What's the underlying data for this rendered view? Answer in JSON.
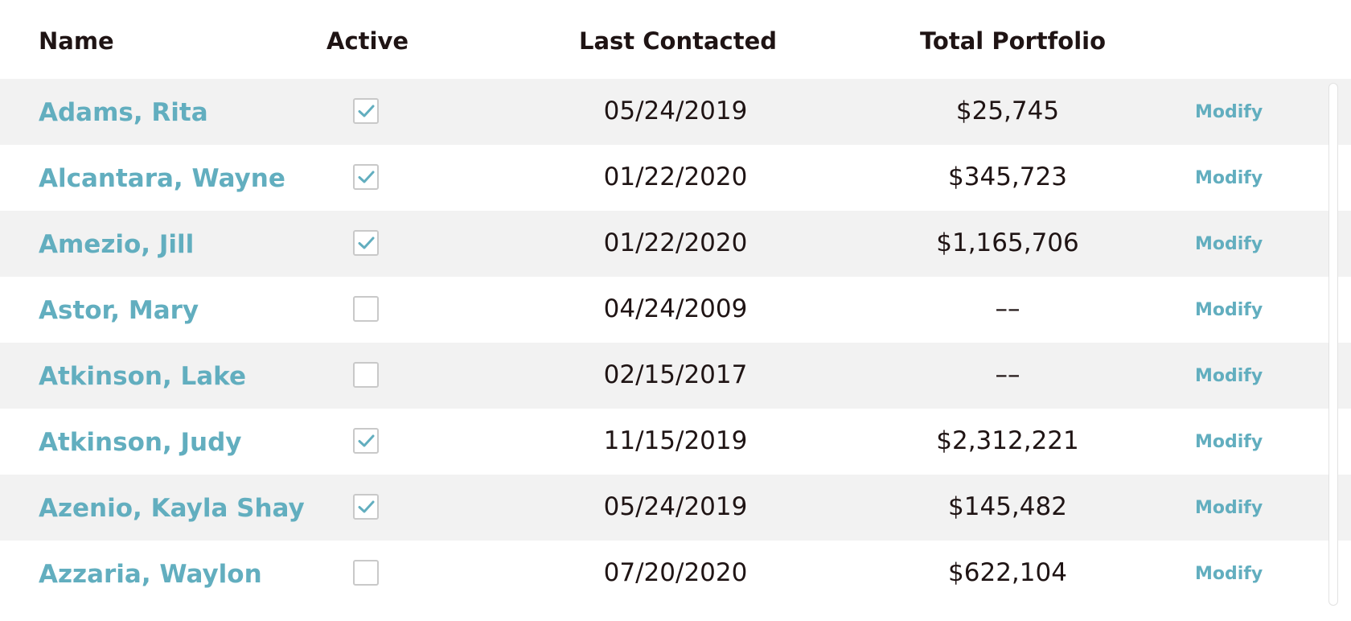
{
  "table": {
    "headers": {
      "name": "Name",
      "active": "Active",
      "last_contacted": "Last Contacted",
      "total_portfolio": "Total Portfolio"
    },
    "rows": [
      {
        "name": "Adams, Rita",
        "active": true,
        "last_contacted": "05/24/2019",
        "total_portfolio": "$25,745",
        "action": "Modify"
      },
      {
        "name": "Alcantara, Wayne",
        "active": true,
        "last_contacted": "01/22/2020",
        "total_portfolio": "$345,723",
        "action": "Modify"
      },
      {
        "name": "Amezio, Jill",
        "active": true,
        "last_contacted": "01/22/2020",
        "total_portfolio": "$1,165,706",
        "action": "Modify"
      },
      {
        "name": "Astor, Mary",
        "active": false,
        "last_contacted": "04/24/2009",
        "total_portfolio": "––",
        "action": "Modify"
      },
      {
        "name": "Atkinson, Lake",
        "active": false,
        "last_contacted": "02/15/2017",
        "total_portfolio": "––",
        "action": "Modify"
      },
      {
        "name": "Atkinson, Judy",
        "active": true,
        "last_contacted": "11/15/2019",
        "total_portfolio": "$2,312,221",
        "action": "Modify"
      },
      {
        "name": "Azenio, Kayla Shay",
        "active": true,
        "last_contacted": "05/24/2019",
        "total_portfolio": "$145,482",
        "action": "Modify"
      },
      {
        "name": "Azzaria, Waylon",
        "active": false,
        "last_contacted": "07/20/2020",
        "total_portfolio": "$622,104",
        "action": "Modify"
      }
    ]
  },
  "colors": {
    "link": "#62aebf",
    "text": "#1f1414",
    "row_shade": "#f2f2f2",
    "checkbox_border": "#c9c9c9"
  },
  "icons": {
    "checked": "checkmark-icon"
  }
}
